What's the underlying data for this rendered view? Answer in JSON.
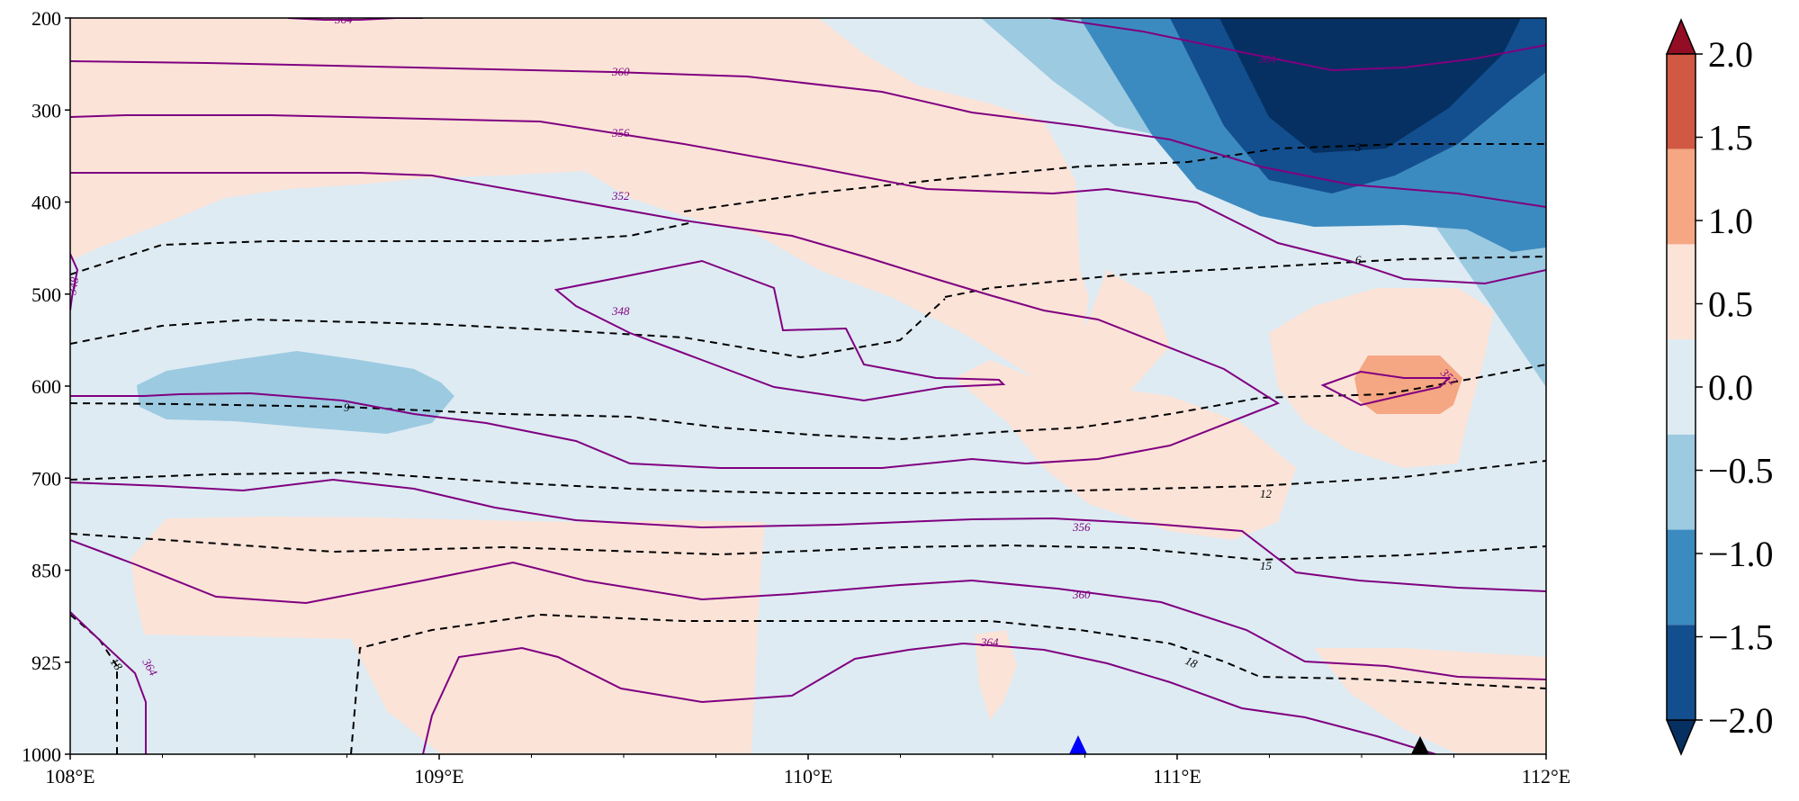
{
  "chart_data": {
    "type": "contour_cross_section",
    "title": "",
    "xlabel": "",
    "ylabel": "",
    "x_ticks": [
      "108°E",
      "109°E",
      "110°E",
      "111°E",
      "112°E"
    ],
    "x_range": [
      108,
      112
    ],
    "y_ticks": [
      "200",
      "300",
      "400",
      "500",
      "600",
      "700",
      "850",
      "925",
      "1000"
    ],
    "y_tick_values": [
      200,
      300,
      400,
      500,
      600,
      700,
      850,
      925,
      1000
    ],
    "y_axis_note": "pressure levels (hPa), inverted, equally spaced level index",
    "colorbar": {
      "levels": [
        -2.0,
        -1.5,
        -1.0,
        -0.5,
        0.0,
        0.5,
        1.0,
        1.5,
        2.0
      ],
      "labels": [
        "2.0",
        "1.5",
        "1.0",
        "0.5",
        "0.0",
        "−0.5",
        "−1.0",
        "−1.5",
        "−2.0"
      ],
      "colors": [
        "#053061",
        "#134f8e",
        "#3c8bc0",
        "#9ccae1",
        "#deebf3",
        "#fbe3d8",
        "#f5a682",
        "#d15944",
        "#930d24"
      ],
      "extend": "both"
    },
    "filled_regions": [
      {
        "value_band": "0.0 to 0.5",
        "color": "#fbe3d8",
        "description": "upper band 200-500 hPa 108.5-110.5°E"
      },
      {
        "value_band": "0.0 to 0.5",
        "color": "#fbe3d8",
        "description": "wedge 110-111.5°E 400-850 hPa"
      },
      {
        "value_band": "0.0 to 0.5",
        "color": "#fbe3d8",
        "description": "lower band 108.2-109.8°E 850-1000 hPa"
      },
      {
        "value_band": "0.0 to 0.5",
        "color": "#fbe3d8",
        "description": "blob 111.2-111.9°E 500-700 hPa"
      },
      {
        "value_band": "0.5 to 1.0",
        "color": "#f5a682",
        "description": "spot near 111.6°E 600 hPa"
      },
      {
        "value_band": "-1.0 to -0.5",
        "color": "#9ccae1",
        "description": "patch 108.2-109°E ~600 hPa"
      },
      {
        "value_band": "< -1.5",
        "color": "#053061",
        "description": "core 111.1-111.9°E 200-350 hPa"
      }
    ],
    "contour_series": [
      {
        "field": "theta_e",
        "style": "solid",
        "color": "#800080",
        "labelled_levels": [
          348,
          352,
          356,
          360,
          364
        ]
      },
      {
        "field": "dashed",
        "style": "dashed",
        "color": "#000000",
        "labelled_levels": [
          3,
          6,
          9,
          12,
          15,
          18
        ]
      }
    ],
    "markers": [
      {
        "shape": "triangle",
        "color": "#0000ff",
        "x": 110.73,
        "level": 1000
      },
      {
        "shape": "triangle",
        "color": "#000000",
        "x": 111.67,
        "level": 1000
      }
    ]
  }
}
